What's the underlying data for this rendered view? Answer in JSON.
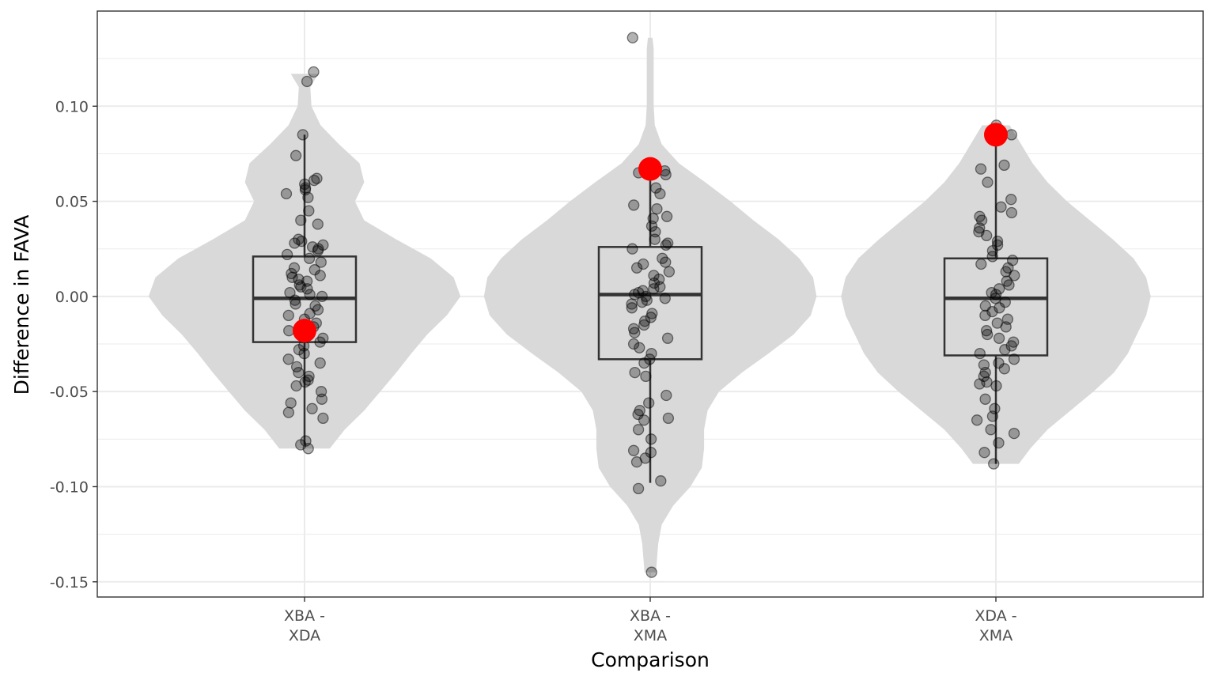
{
  "chart_data": {
    "type": "violin",
    "title": "",
    "xlabel": "Comparison",
    "ylabel": "Difference in FAVA",
    "ylim": [
      -0.158,
      0.15
    ],
    "grid": true,
    "legend": "none",
    "y_ticks": [
      {
        "value": -0.15,
        "label": "-0.15"
      },
      {
        "value": -0.1,
        "label": "-0.10"
      },
      {
        "value": -0.05,
        "label": "-0.05"
      },
      {
        "value": 0.0,
        "label": "0.00"
      },
      {
        "value": 0.05,
        "label": "0.05"
      },
      {
        "value": 0.1,
        "label": "0.10"
      }
    ],
    "colors": {
      "violin": "#d9d9d9",
      "box": "#333333",
      "point": "#000000",
      "highlight": "#ff0000",
      "grid": "#ebebeb",
      "panel_border": "#333333"
    },
    "groups": [
      {
        "label_lines": [
          "XBA -",
          "XDA"
        ],
        "box": {
          "q1": -0.024,
          "median": -0.001,
          "q3": 0.021,
          "whisker_low": -0.078,
          "whisker_high": 0.085
        },
        "highlight": -0.018,
        "violin_range": [
          -0.08,
          0.117
        ],
        "violin_profile": [
          [
            -0.08,
            0.22
          ],
          [
            -0.07,
            0.35
          ],
          [
            -0.06,
            0.52
          ],
          [
            -0.05,
            0.66
          ],
          [
            -0.04,
            0.8
          ],
          [
            -0.03,
            0.93
          ],
          [
            -0.02,
            1.07
          ],
          [
            -0.01,
            1.24
          ],
          [
            0.0,
            1.36
          ],
          [
            0.01,
            1.3
          ],
          [
            0.02,
            1.1
          ],
          [
            0.03,
            0.8
          ],
          [
            0.04,
            0.52
          ],
          [
            0.05,
            0.44
          ],
          [
            0.06,
            0.52
          ],
          [
            0.07,
            0.48
          ],
          [
            0.08,
            0.3
          ],
          [
            0.09,
            0.14
          ],
          [
            0.1,
            0.06
          ],
          [
            0.11,
            0.05
          ],
          [
            0.117,
            0.12
          ]
        ],
        "points": [
          0.118,
          0.113,
          0.085,
          0.074,
          0.062,
          0.061,
          0.059,
          0.057,
          0.056,
          0.054,
          0.052,
          0.045,
          0.04,
          0.038,
          0.03,
          0.029,
          0.028,
          0.027,
          0.026,
          0.025,
          0.024,
          0.022,
          0.02,
          0.018,
          0.015,
          0.014,
          0.012,
          0.011,
          0.01,
          0.009,
          0.008,
          0.006,
          0.005,
          0.004,
          0.002,
          0.001,
          0.0,
          -0.002,
          -0.004,
          -0.005,
          -0.007,
          -0.009,
          -0.01,
          -0.012,
          -0.014,
          -0.016,
          -0.018,
          -0.02,
          -0.022,
          -0.024,
          -0.026,
          -0.028,
          -0.03,
          -0.033,
          -0.035,
          -0.037,
          -0.04,
          -0.042,
          -0.044,
          -0.045,
          -0.047,
          -0.05,
          -0.054,
          -0.056,
          -0.059,
          -0.061,
          -0.064,
          -0.076,
          -0.078,
          -0.08
        ]
      },
      {
        "label_lines": [
          "XBA -",
          "XMA"
        ],
        "box": {
          "q1": -0.033,
          "median": 0.001,
          "q3": 0.026,
          "whisker_low": -0.098,
          "whisker_high": 0.067
        },
        "highlight": 0.067,
        "violin_range": [
          -0.145,
          0.136
        ],
        "violin_profile": [
          [
            -0.145,
            0.05
          ],
          [
            -0.13,
            0.07
          ],
          [
            -0.12,
            0.1
          ],
          [
            -0.11,
            0.2
          ],
          [
            -0.1,
            0.35
          ],
          [
            -0.09,
            0.45
          ],
          [
            -0.08,
            0.47
          ],
          [
            -0.07,
            0.47
          ],
          [
            -0.06,
            0.5
          ],
          [
            -0.05,
            0.6
          ],
          [
            -0.04,
            0.8
          ],
          [
            -0.03,
            1.03
          ],
          [
            -0.02,
            1.25
          ],
          [
            -0.01,
            1.4
          ],
          [
            0.0,
            1.45
          ],
          [
            0.01,
            1.42
          ],
          [
            0.02,
            1.3
          ],
          [
            0.03,
            1.12
          ],
          [
            0.04,
            0.9
          ],
          [
            0.05,
            0.7
          ],
          [
            0.06,
            0.48
          ],
          [
            0.07,
            0.25
          ],
          [
            0.08,
            0.1
          ],
          [
            0.09,
            0.04
          ],
          [
            0.1,
            0.03
          ],
          [
            0.11,
            0.03
          ],
          [
            0.12,
            0.03
          ],
          [
            0.13,
            0.03
          ],
          [
            0.136,
            0.02
          ]
        ],
        "points": [
          0.136,
          0.067,
          0.066,
          0.065,
          0.064,
          0.057,
          0.054,
          0.048,
          0.046,
          0.042,
          0.041,
          0.037,
          0.034,
          0.03,
          0.028,
          0.027,
          0.025,
          0.02,
          0.018,
          0.017,
          0.015,
          0.013,
          0.011,
          0.009,
          0.007,
          0.005,
          0.004,
          0.003,
          0.002,
          0.001,
          0.0,
          -0.001,
          -0.002,
          -0.003,
          -0.004,
          -0.006,
          -0.009,
          -0.011,
          -0.013,
          -0.015,
          -0.017,
          -0.019,
          -0.022,
          -0.025,
          -0.027,
          -0.03,
          -0.033,
          -0.035,
          -0.04,
          -0.042,
          -0.052,
          -0.056,
          -0.06,
          -0.062,
          -0.064,
          -0.065,
          -0.07,
          -0.075,
          -0.081,
          -0.082,
          -0.085,
          -0.087,
          -0.097,
          -0.101,
          -0.145
        ]
      },
      {
        "label_lines": [
          "XDA -",
          "XMA"
        ],
        "box": {
          "q1": -0.031,
          "median": -0.001,
          "q3": 0.02,
          "whisker_low": -0.088,
          "whisker_high": 0.085
        },
        "highlight": 0.085,
        "violin_range": [
          -0.088,
          0.09
        ],
        "violin_profile": [
          [
            -0.088,
            0.2
          ],
          [
            -0.08,
            0.3
          ],
          [
            -0.07,
            0.45
          ],
          [
            -0.06,
            0.65
          ],
          [
            -0.05,
            0.85
          ],
          [
            -0.04,
            1.03
          ],
          [
            -0.03,
            1.15
          ],
          [
            -0.02,
            1.23
          ],
          [
            -0.01,
            1.31
          ],
          [
            0.0,
            1.35
          ],
          [
            0.01,
            1.31
          ],
          [
            0.02,
            1.2
          ],
          [
            0.03,
            1.02
          ],
          [
            0.04,
            0.82
          ],
          [
            0.05,
            0.62
          ],
          [
            0.06,
            0.45
          ],
          [
            0.07,
            0.32
          ],
          [
            0.08,
            0.22
          ],
          [
            0.09,
            0.12
          ]
        ],
        "points": [
          0.09,
          0.085,
          0.069,
          0.067,
          0.06,
          0.051,
          0.047,
          0.044,
          0.042,
          0.04,
          0.036,
          0.034,
          0.032,
          0.029,
          0.027,
          0.024,
          0.021,
          0.019,
          0.017,
          0.015,
          0.013,
          0.011,
          0.008,
          0.006,
          0.004,
          0.002,
          0.001,
          -0.001,
          -0.003,
          -0.005,
          -0.006,
          -0.008,
          -0.01,
          -0.012,
          -0.014,
          -0.016,
          -0.018,
          -0.02,
          -0.022,
          -0.024,
          -0.026,
          -0.028,
          -0.03,
          -0.033,
          -0.035,
          -0.036,
          -0.038,
          -0.04,
          -0.042,
          -0.045,
          -0.046,
          -0.047,
          -0.054,
          -0.059,
          -0.063,
          -0.065,
          -0.07,
          -0.072,
          -0.077,
          -0.082,
          -0.088
        ]
      }
    ]
  }
}
